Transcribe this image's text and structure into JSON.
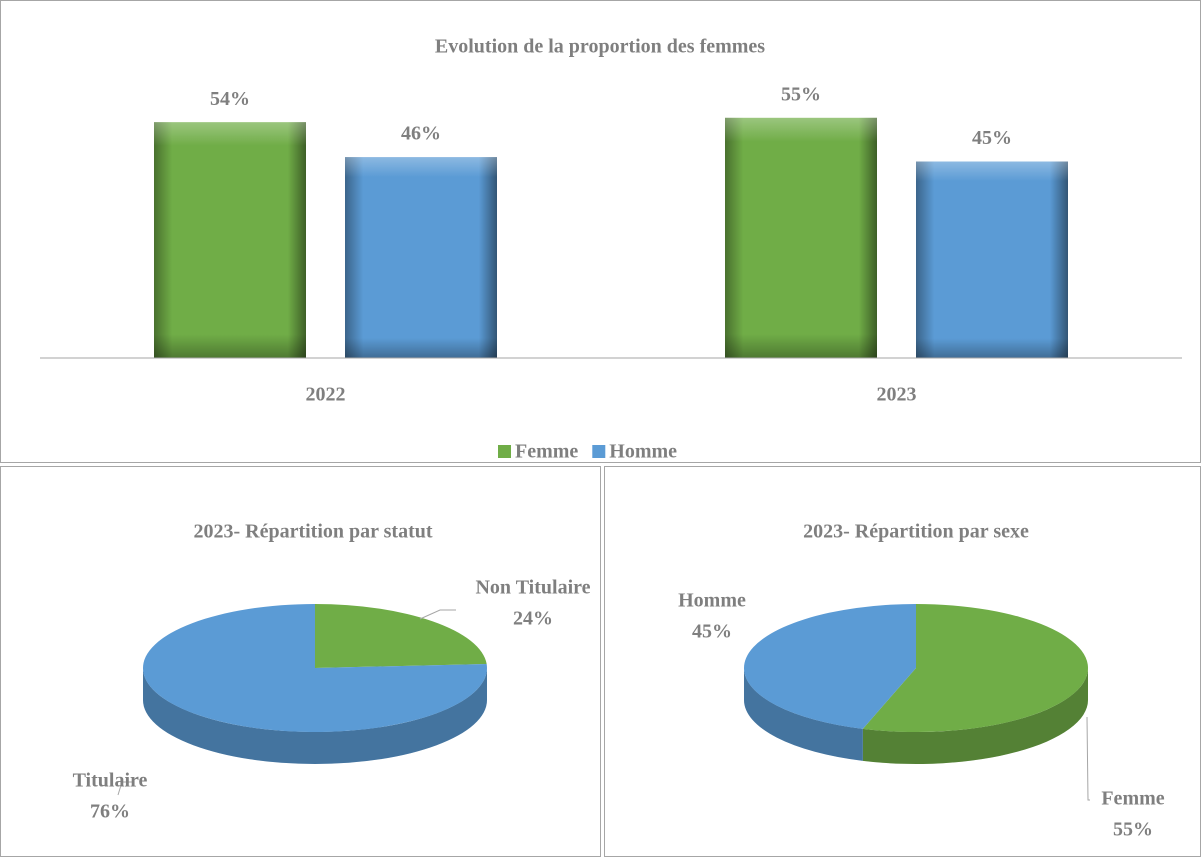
{
  "chart_data": [
    {
      "type": "bar",
      "title": "Evolution de la proportion des femmes",
      "categories": [
        "2022",
        "2023"
      ],
      "series": [
        {
          "name": "Femme",
          "color": "#70ad47",
          "values": [
            54,
            55
          ],
          "value_labels": [
            "54%",
            "55%"
          ]
        },
        {
          "name": "Homme",
          "color": "#5b9bd5",
          "values": [
            46,
            45
          ],
          "value_labels": [
            "46%",
            "45%"
          ]
        }
      ],
      "ylim": [
        0,
        60
      ],
      "legend": "bottom"
    },
    {
      "type": "pie",
      "title": "2023- Répartition par statut",
      "categories": [
        "Non Titulaire",
        "Titulaire"
      ],
      "values": [
        24,
        76
      ],
      "value_labels": [
        "24%",
        "76%"
      ],
      "colors": [
        "#70ad47",
        "#5b9bd5"
      ]
    },
    {
      "type": "pie",
      "title": "2023- Répartition par sexe",
      "categories": [
        "Femme",
        "Homme"
      ],
      "values": [
        55,
        45
      ],
      "value_labels": [
        "55%",
        "45%"
      ],
      "colors": [
        "#70ad47",
        "#5b9bd5"
      ]
    }
  ]
}
